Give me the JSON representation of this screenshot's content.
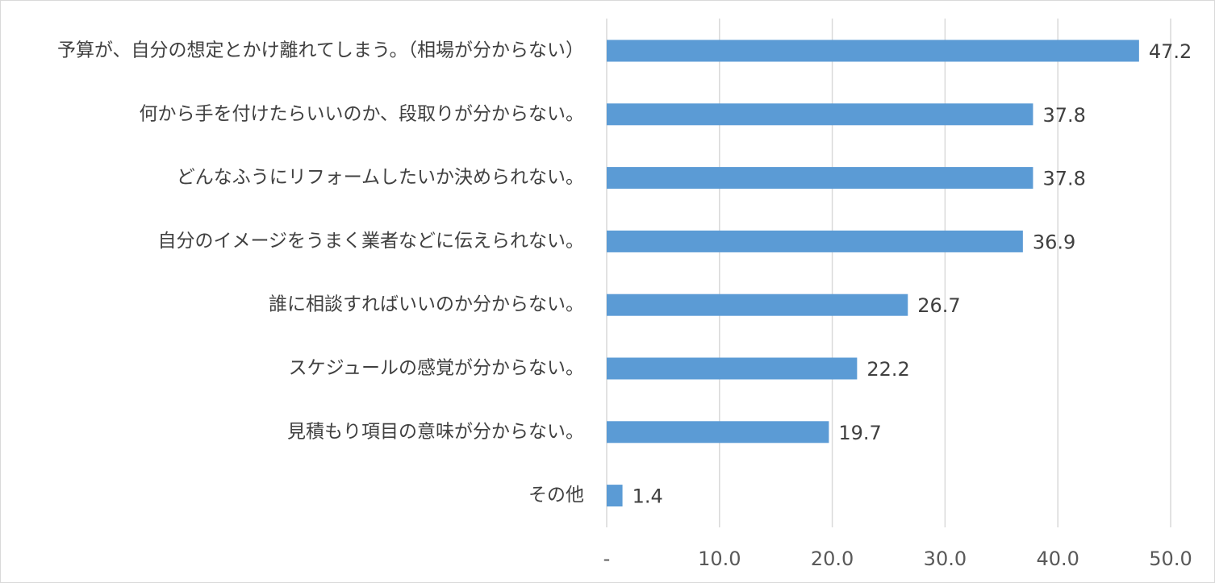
{
  "chart_data": {
    "type": "bar",
    "orientation": "horizontal",
    "categories": [
      "予算が、自分の想定とかけ離れてしまう。（相場が分からない）",
      "何から手を付けたらいいのか、段取りが分からない。",
      "どんなふうにリフォームしたいか決められない。",
      "自分のイメージをうまく業者などに伝えられない。",
      "誰に相談すればいいのか分からない。",
      "スケジュールの感覚が分からない。",
      "見積もり項目の意味が分からない。",
      "その他"
    ],
    "values": [
      47.2,
      37.8,
      37.8,
      36.9,
      26.7,
      22.2,
      19.7,
      1.4
    ],
    "value_labels": [
      "47.2",
      "37.8",
      "37.8",
      "36.9",
      "26.7",
      "22.2",
      "19.7",
      "1.4"
    ],
    "xlim": [
      0,
      50
    ],
    "x_ticks": [
      0,
      10,
      20,
      30,
      40,
      50
    ],
    "x_tick_labels": [
      "-",
      "10.0",
      "20.0",
      "30.0",
      "40.0",
      "50.0"
    ],
    "grid": true,
    "legend": "none",
    "bar_color": "#5b9bd5",
    "grid_color": "#d9d9d9",
    "text_color": "#404040"
  }
}
